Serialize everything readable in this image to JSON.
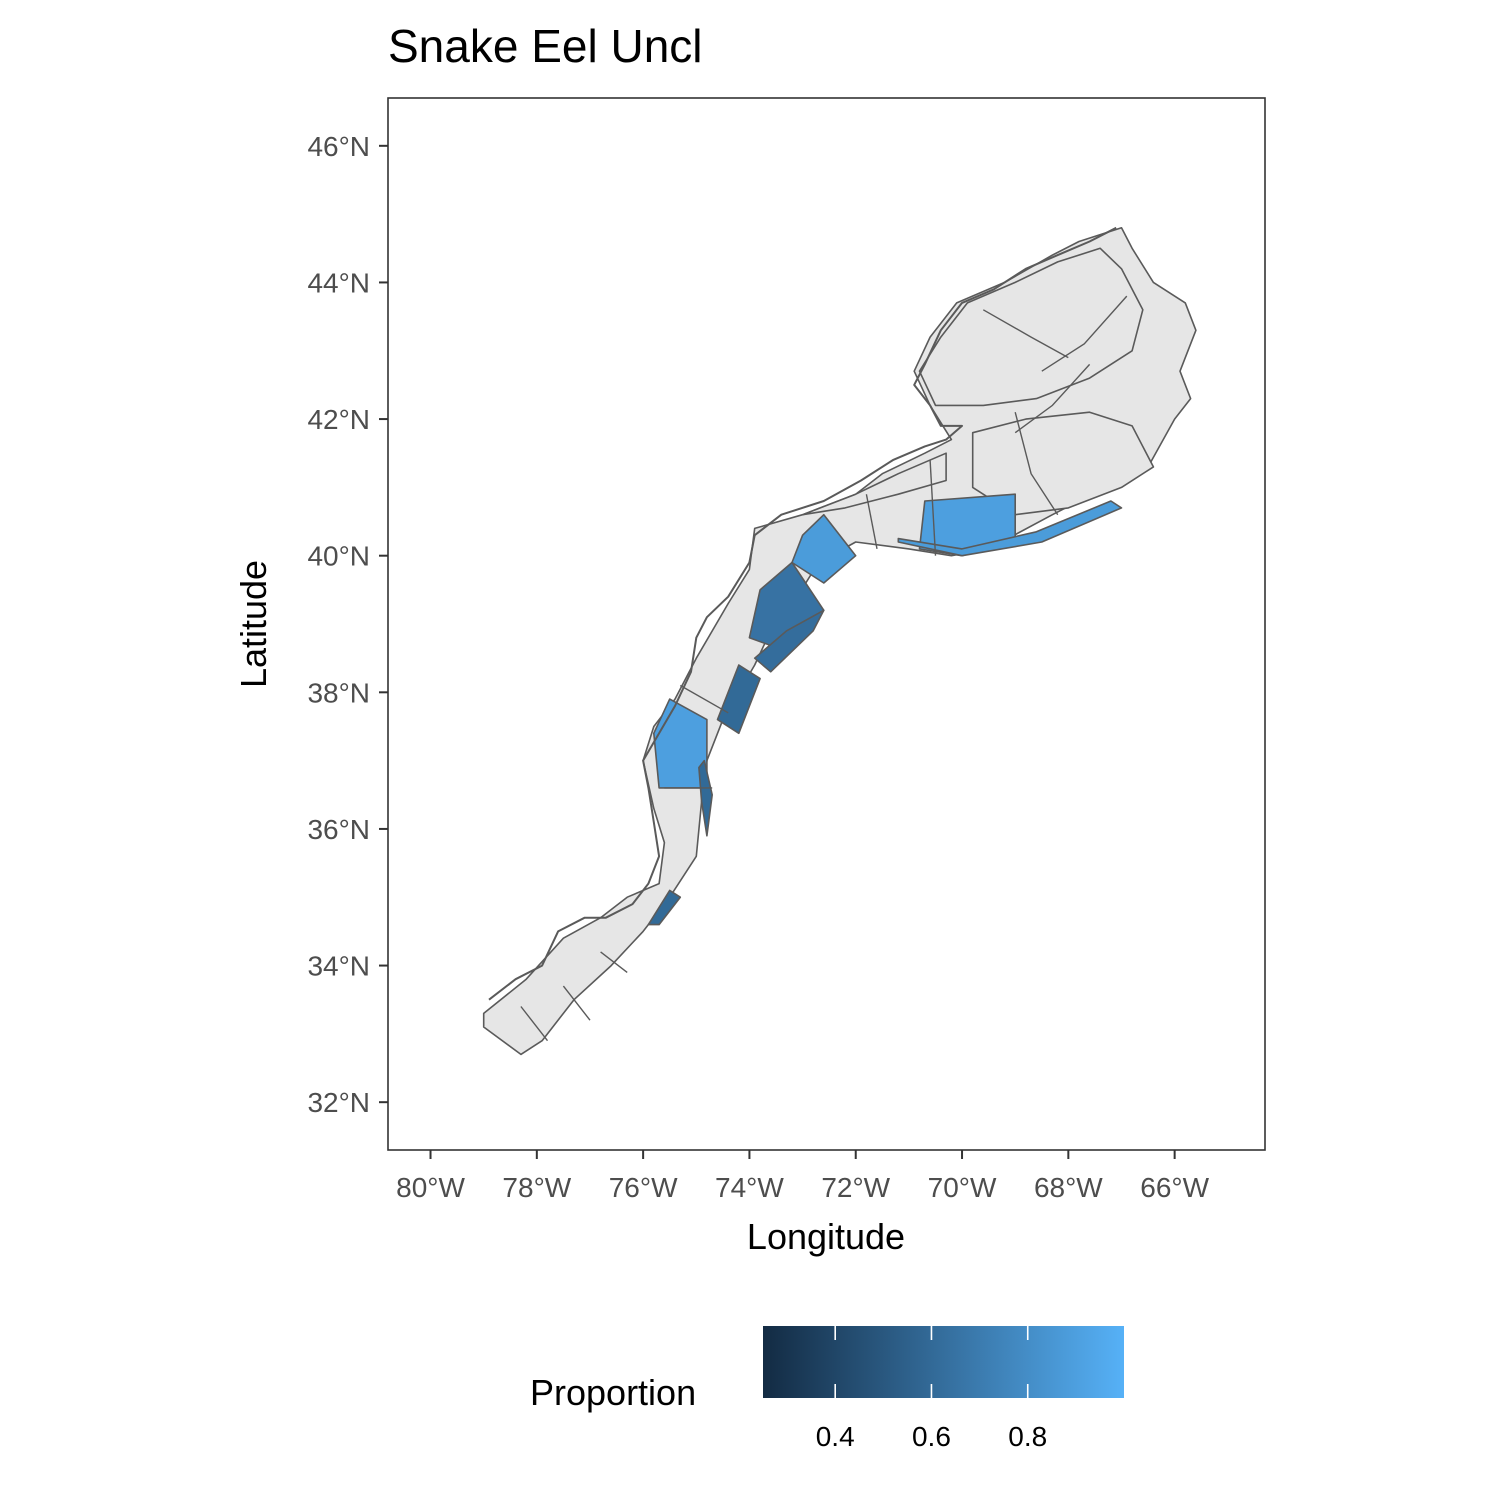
{
  "chart_data": {
    "type": "map",
    "title": "Snake Eel Uncl",
    "xlabel": "Longitude",
    "ylabel": "Latitude",
    "xlim": [
      -80.8,
      -64.3
    ],
    "ylim": [
      31.3,
      46.7
    ],
    "x_ticks": [
      {
        "value": -80,
        "label": "80°W"
      },
      {
        "value": -78,
        "label": "78°W"
      },
      {
        "value": -76,
        "label": "76°W"
      },
      {
        "value": -74,
        "label": "74°W"
      },
      {
        "value": -72,
        "label": "72°W"
      },
      {
        "value": -70,
        "label": "70°W"
      },
      {
        "value": -68,
        "label": "68°W"
      },
      {
        "value": -66,
        "label": "66°W"
      }
    ],
    "y_ticks": [
      {
        "value": 32,
        "label": "32°N"
      },
      {
        "value": 34,
        "label": "34°N"
      },
      {
        "value": 36,
        "label": "36°N"
      },
      {
        "value": 38,
        "label": "38°N"
      },
      {
        "value": 40,
        "label": "40°N"
      },
      {
        "value": 42,
        "label": "42°N"
      },
      {
        "value": 44,
        "label": "44°N"
      },
      {
        "value": 46,
        "label": "46°N"
      }
    ],
    "grid": false,
    "colors": {
      "no_data": "#e6e6e6",
      "outline": "#5a5a5a",
      "scale_low": "#132b43",
      "scale_high": "#56b1f7"
    },
    "legend": {
      "title": "Proportion",
      "position": "bottom",
      "range": [
        0.25,
        1.0
      ],
      "ticks": [
        0.4,
        0.6,
        0.8
      ],
      "tick_labels": [
        "0.4",
        "0.6",
        "0.8"
      ]
    },
    "regions": [
      {
        "name": "shelf-outline",
        "value": null,
        "path": [
          [
            -79.0,
            33.3
          ],
          [
            -78.2,
            33.8
          ],
          [
            -77.5,
            34.4
          ],
          [
            -76.8,
            34.7
          ],
          [
            -76.3,
            35.0
          ],
          [
            -75.7,
            35.2
          ],
          [
            -75.6,
            35.8
          ],
          [
            -75.8,
            36.3
          ],
          [
            -76.0,
            37.0
          ],
          [
            -75.8,
            37.5
          ],
          [
            -75.4,
            37.9
          ],
          [
            -75.0,
            38.5
          ],
          [
            -74.4,
            39.3
          ],
          [
            -74.0,
            39.8
          ],
          [
            -73.9,
            40.4
          ],
          [
            -73.0,
            40.6
          ],
          [
            -72.0,
            40.9
          ],
          [
            -71.5,
            41.2
          ],
          [
            -70.7,
            41.5
          ],
          [
            -70.2,
            41.7
          ],
          [
            -70.6,
            42.2
          ],
          [
            -70.9,
            42.7
          ],
          [
            -70.6,
            43.2
          ],
          [
            -70.1,
            43.7
          ],
          [
            -69.2,
            44.0
          ],
          [
            -68.3,
            44.4
          ],
          [
            -67.8,
            44.6
          ],
          [
            -67.0,
            44.8
          ],
          [
            -66.8,
            44.5
          ],
          [
            -66.4,
            44.0
          ],
          [
            -65.8,
            43.7
          ],
          [
            -65.6,
            43.3
          ],
          [
            -65.9,
            42.7
          ],
          [
            -65.7,
            42.3
          ],
          [
            -66.0,
            42.0
          ],
          [
            -66.5,
            41.3
          ],
          [
            -67.3,
            41.0
          ],
          [
            -68.3,
            40.6
          ],
          [
            -69.5,
            40.1
          ],
          [
            -70.2,
            40.0
          ],
          [
            -71.0,
            40.1
          ],
          [
            -72.0,
            40.2
          ],
          [
            -72.7,
            39.9
          ],
          [
            -73.1,
            39.4
          ],
          [
            -73.6,
            38.9
          ],
          [
            -73.9,
            38.4
          ],
          [
            -74.5,
            37.6
          ],
          [
            -74.8,
            37.0
          ],
          [
            -74.9,
            36.4
          ],
          [
            -75.0,
            35.6
          ],
          [
            -75.5,
            35.0
          ],
          [
            -76.0,
            34.5
          ],
          [
            -76.6,
            34.0
          ],
          [
            -77.3,
            33.5
          ],
          [
            -77.9,
            32.9
          ],
          [
            -78.3,
            32.7
          ],
          [
            -79.0,
            33.1
          ]
        ]
      },
      {
        "name": "gulf-of-maine",
        "value": null,
        "path": [
          [
            -70.5,
            42.2
          ],
          [
            -70.8,
            42.7
          ],
          [
            -70.4,
            43.2
          ],
          [
            -69.9,
            43.7
          ],
          [
            -69.0,
            44.0
          ],
          [
            -68.2,
            44.3
          ],
          [
            -67.4,
            44.5
          ],
          [
            -67.0,
            44.2
          ],
          [
            -66.6,
            43.6
          ],
          [
            -66.8,
            43.0
          ],
          [
            -67.6,
            42.6
          ],
          [
            -68.6,
            42.3
          ],
          [
            -69.6,
            42.2
          ]
        ]
      },
      {
        "name": "georges-bank",
        "value": null,
        "path": [
          [
            -69.8,
            41.8
          ],
          [
            -68.8,
            42.0
          ],
          [
            -67.6,
            42.1
          ],
          [
            -66.8,
            41.9
          ],
          [
            -66.4,
            41.3
          ],
          [
            -67.0,
            41.0
          ],
          [
            -68.0,
            40.7
          ],
          [
            -69.0,
            40.6
          ],
          [
            -69.8,
            41.0
          ]
        ]
      },
      {
        "name": "southern-new-england-inner",
        "value": null,
        "path": [
          [
            -73.0,
            40.6
          ],
          [
            -72.0,
            40.9
          ],
          [
            -71.2,
            41.2
          ],
          [
            -70.3,
            41.5
          ],
          [
            -70.3,
            41.1
          ],
          [
            -71.2,
            40.9
          ],
          [
            -72.2,
            40.7
          ]
        ]
      },
      {
        "name": "hudson-canyon-stratum",
        "value": 0.88,
        "path": [
          [
            -72.6,
            40.6
          ],
          [
            -72.0,
            40.0
          ],
          [
            -72.6,
            39.6
          ],
          [
            -73.2,
            39.9
          ],
          [
            -73.0,
            40.3
          ]
        ]
      },
      {
        "name": "nj-inner-stratum",
        "value": 0.65,
        "path": [
          [
            -73.2,
            39.9
          ],
          [
            -72.6,
            39.2
          ],
          [
            -73.3,
            38.6
          ],
          [
            -74.0,
            38.8
          ],
          [
            -73.8,
            39.5
          ]
        ]
      },
      {
        "name": "nj-outer-stratum",
        "value": 0.62,
        "path": [
          [
            -72.6,
            39.2
          ],
          [
            -72.8,
            38.9
          ],
          [
            -73.6,
            38.3
          ],
          [
            -73.9,
            38.5
          ],
          [
            -73.3,
            38.9
          ]
        ]
      },
      {
        "name": "delmarva-stratum",
        "value": 0.9,
        "path": [
          [
            -75.5,
            37.9
          ],
          [
            -74.8,
            37.6
          ],
          [
            -74.8,
            36.6
          ],
          [
            -75.7,
            36.6
          ],
          [
            -75.8,
            37.4
          ]
        ]
      },
      {
        "name": "delmarva-shelf-edge",
        "value": 0.6,
        "path": [
          [
            -74.6,
            37.6
          ],
          [
            -74.2,
            37.4
          ],
          [
            -73.8,
            38.2
          ],
          [
            -74.2,
            38.4
          ]
        ]
      },
      {
        "name": "southern-new-england-shelf-edge",
        "value": 0.9,
        "path": [
          [
            -70.7,
            40.8
          ],
          [
            -69.0,
            40.9
          ],
          [
            -69.0,
            40.2
          ],
          [
            -70.0,
            40.0
          ],
          [
            -70.8,
            40.1
          ]
        ]
      },
      {
        "name": "shelf-edge-sliver",
        "value": 0.88,
        "path": [
          [
            -71.2,
            40.2
          ],
          [
            -70.0,
            40.0
          ],
          [
            -68.5,
            40.2
          ],
          [
            -67.0,
            40.7
          ],
          [
            -67.2,
            40.8
          ],
          [
            -68.6,
            40.35
          ],
          [
            -70.0,
            40.1
          ],
          [
            -71.2,
            40.25
          ]
        ]
      },
      {
        "name": "hatteras-sliver",
        "value": 0.6,
        "path": [
          [
            -75.9,
            34.6
          ],
          [
            -75.5,
            35.1
          ],
          [
            -75.3,
            35.0
          ],
          [
            -75.7,
            34.6
          ]
        ]
      },
      {
        "name": "virginia-sliver",
        "value": 0.6,
        "path": [
          [
            -74.85,
            37.0
          ],
          [
            -74.7,
            36.5
          ],
          [
            -74.8,
            35.9
          ],
          [
            -74.9,
            36.4
          ],
          [
            -74.95,
            36.9
          ]
        ]
      }
    ],
    "boundaries": [
      [
        [
          -71.8,
          40.9
        ],
        [
          -71.6,
          40.1
        ]
      ],
      [
        [
          -70.6,
          41.4
        ],
        [
          -70.5,
          40.0
        ]
      ],
      [
        [
          -69.0,
          42.1
        ],
        [
          -68.7,
          41.2
        ],
        [
          -68.2,
          40.6
        ]
      ],
      [
        [
          -67.6,
          42.8
        ],
        [
          -68.3,
          42.2
        ],
        [
          -69.0,
          41.8
        ]
      ],
      [
        [
          -66.9,
          43.8
        ],
        [
          -67.7,
          43.1
        ],
        [
          -68.5,
          42.7
        ]
      ],
      [
        [
          -69.6,
          43.6
        ],
        [
          -68.7,
          43.2
        ],
        [
          -68.0,
          42.9
        ]
      ],
      [
        [
          -75.6,
          36.6
        ],
        [
          -74.7,
          36.6
        ]
      ],
      [
        [
          -75.3,
          38.1
        ],
        [
          -74.4,
          37.7
        ]
      ],
      [
        [
          -77.5,
          33.7
        ],
        [
          -77.0,
          33.2
        ]
      ],
      [
        [
          -78.3,
          33.4
        ],
        [
          -77.8,
          32.9
        ]
      ],
      [
        [
          -76.8,
          34.2
        ],
        [
          -76.3,
          33.9
        ]
      ]
    ],
    "coast": [
      [
        -78.9,
        33.5
      ],
      [
        -78.4,
        33.8
      ],
      [
        -77.9,
        34.0
      ],
      [
        -77.6,
        34.5
      ],
      [
        -77.1,
        34.7
      ],
      [
        -76.7,
        34.7
      ],
      [
        -76.2,
        34.9
      ],
      [
        -75.9,
        35.2
      ],
      [
        -75.7,
        35.6
      ],
      [
        -75.8,
        36.1
      ],
      [
        -75.9,
        36.6
      ],
      [
        -76.0,
        37.0
      ],
      [
        -75.7,
        37.4
      ],
      [
        -75.4,
        37.8
      ],
      [
        -75.1,
        38.3
      ],
      [
        -75.0,
        38.8
      ],
      [
        -74.8,
        39.1
      ],
      [
        -74.4,
        39.4
      ],
      [
        -74.0,
        39.9
      ],
      [
        -73.9,
        40.3
      ],
      [
        -73.4,
        40.6
      ],
      [
        -72.6,
        40.8
      ],
      [
        -71.9,
        41.1
      ],
      [
        -71.3,
        41.4
      ],
      [
        -70.7,
        41.6
      ],
      [
        -70.3,
        41.7
      ],
      [
        -70.0,
        41.9
      ],
      [
        -70.4,
        41.9
      ],
      [
        -70.6,
        42.2
      ],
      [
        -70.9,
        42.5
      ],
      [
        -70.7,
        42.8
      ],
      [
        -70.4,
        43.3
      ],
      [
        -70.0,
        43.7
      ],
      [
        -69.4,
        43.9
      ],
      [
        -68.8,
        44.2
      ],
      [
        -68.2,
        44.4
      ],
      [
        -67.6,
        44.6
      ],
      [
        -67.1,
        44.8
      ]
    ]
  }
}
